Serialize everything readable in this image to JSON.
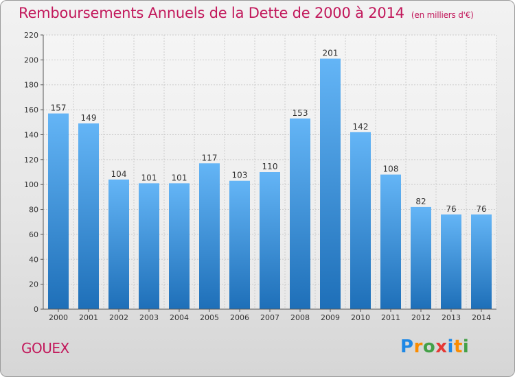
{
  "title": "Remboursements Annuels de la Dette de 2000 à 2014",
  "unit_label": "(en milliers d'€)",
  "commune": "GOUEX",
  "logo": {
    "text": "Proxiti",
    "letters": [
      "P",
      "r",
      "o",
      "x",
      "i",
      "t",
      "i"
    ],
    "colors": [
      "#1e88e5",
      "#fb8c00",
      "#43a047",
      "#e53935",
      "#1e88e5",
      "#fb8c00",
      "#43a047"
    ]
  },
  "colors": {
    "title": "#c2185b",
    "bar_top": "#64b5f6",
    "bar_bottom": "#1e6fb8",
    "grid": "#cccccc",
    "axis": "#555555"
  },
  "chart_data": {
    "type": "bar",
    "title": "Remboursements Annuels de la Dette de 2000 à 2014",
    "xlabel": "",
    "ylabel": "",
    "ylim": [
      0,
      220
    ],
    "yticks": [
      0,
      20,
      40,
      60,
      80,
      100,
      120,
      140,
      160,
      180,
      200,
      220
    ],
    "categories": [
      "2000",
      "2001",
      "2002",
      "2003",
      "2004",
      "2005",
      "2006",
      "2007",
      "2008",
      "2009",
      "2010",
      "2011",
      "2012",
      "2013",
      "2014"
    ],
    "values": [
      157,
      149,
      104,
      101,
      101,
      117,
      103,
      110,
      153,
      201,
      142,
      108,
      82,
      76,
      76
    ],
    "grid": true
  }
}
